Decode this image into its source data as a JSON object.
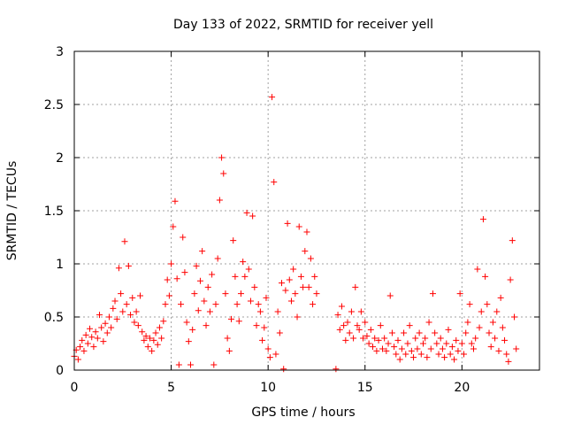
{
  "chart_data": {
    "type": "scatter",
    "title": "Day 133 of 2022, SRMTID for receiver yell",
    "xlabel": "GPS time / hours",
    "ylabel": "SRMTID / TECUs",
    "xlim": [
      0,
      24
    ],
    "ylim": [
      0,
      3
    ],
    "x_ticks": [
      0,
      5,
      10,
      15,
      20
    ],
    "x_tick_labels": [
      "0",
      "5",
      "10",
      "15",
      "20"
    ],
    "y_ticks": [
      0,
      0.5,
      1,
      1.5,
      2,
      2.5,
      3
    ],
    "y_tick_labels": [
      "0",
      "0.5",
      "1",
      "1.5",
      "2",
      "2.5",
      "3"
    ],
    "grid": true,
    "marker": "plus",
    "series": [
      {
        "name": "SRMTID",
        "color": "#ff0000",
        "points": [
          [
            0.0,
            0.13
          ],
          [
            0.1,
            0.19
          ],
          [
            0.2,
            0.1
          ],
          [
            0.3,
            0.22
          ],
          [
            0.4,
            0.28
          ],
          [
            0.5,
            0.18
          ],
          [
            0.6,
            0.33
          ],
          [
            0.7,
            0.25
          ],
          [
            0.8,
            0.39
          ],
          [
            0.9,
            0.31
          ],
          [
            1.0,
            0.22
          ],
          [
            1.1,
            0.36
          ],
          [
            1.2,
            0.3
          ],
          [
            1.3,
            0.52
          ],
          [
            1.4,
            0.4
          ],
          [
            1.5,
            0.27
          ],
          [
            1.6,
            0.44
          ],
          [
            1.7,
            0.35
          ],
          [
            1.8,
            0.5
          ],
          [
            1.9,
            0.4
          ],
          [
            2.0,
            0.58
          ],
          [
            2.1,
            0.65
          ],
          [
            2.2,
            0.48
          ],
          [
            2.3,
            0.96
          ],
          [
            2.4,
            0.72
          ],
          [
            2.5,
            0.55
          ],
          [
            2.6,
            1.21
          ],
          [
            2.7,
            0.62
          ],
          [
            2.8,
            0.98
          ],
          [
            2.9,
            0.52
          ],
          [
            3.0,
            0.68
          ],
          [
            3.1,
            0.45
          ],
          [
            3.2,
            0.55
          ],
          [
            3.3,
            0.42
          ],
          [
            3.4,
            0.7
          ],
          [
            3.5,
            0.36
          ],
          [
            3.6,
            0.28
          ],
          [
            3.7,
            0.32
          ],
          [
            3.8,
            0.22
          ],
          [
            3.9,
            0.3
          ],
          [
            4.0,
            0.18
          ],
          [
            4.1,
            0.28
          ],
          [
            4.2,
            0.35
          ],
          [
            4.3,
            0.24
          ],
          [
            4.4,
            0.4
          ],
          [
            4.5,
            0.3
          ],
          [
            4.6,
            0.46
          ],
          [
            4.7,
            0.62
          ],
          [
            4.8,
            0.85
          ],
          [
            4.9,
            0.7
          ],
          [
            5.0,
            1.0
          ],
          [
            5.1,
            1.35
          ],
          [
            5.2,
            1.59
          ],
          [
            5.3,
            0.86
          ],
          [
            5.4,
            0.05
          ],
          [
            5.5,
            0.62
          ],
          [
            5.6,
            1.25
          ],
          [
            5.7,
            0.92
          ],
          [
            5.8,
            0.45
          ],
          [
            5.9,
            0.27
          ],
          [
            6.0,
            0.05
          ],
          [
            6.1,
            0.38
          ],
          [
            6.2,
            0.72
          ],
          [
            6.3,
            0.98
          ],
          [
            6.4,
            0.56
          ],
          [
            6.5,
            0.84
          ],
          [
            6.6,
            1.12
          ],
          [
            6.7,
            0.65
          ],
          [
            6.8,
            0.42
          ],
          [
            6.9,
            0.78
          ],
          [
            7.0,
            0.55
          ],
          [
            7.1,
            0.9
          ],
          [
            7.2,
            0.05
          ],
          [
            7.3,
            0.62
          ],
          [
            7.4,
            1.05
          ],
          [
            7.5,
            1.6
          ],
          [
            7.6,
            2.0
          ],
          [
            7.7,
            1.85
          ],
          [
            7.8,
            0.72
          ],
          [
            7.9,
            0.3
          ],
          [
            8.0,
            0.18
          ],
          [
            8.1,
            0.48
          ],
          [
            8.2,
            1.22
          ],
          [
            8.3,
            0.88
          ],
          [
            8.4,
            0.62
          ],
          [
            8.5,
            0.46
          ],
          [
            8.6,
            0.72
          ],
          [
            8.7,
            1.02
          ],
          [
            8.8,
            0.88
          ],
          [
            8.9,
            1.48
          ],
          [
            9.0,
            0.95
          ],
          [
            9.1,
            0.65
          ],
          [
            9.2,
            1.45
          ],
          [
            9.3,
            0.78
          ],
          [
            9.4,
            0.42
          ],
          [
            9.5,
            0.62
          ],
          [
            9.6,
            0.55
          ],
          [
            9.7,
            0.28
          ],
          [
            9.8,
            0.4
          ],
          [
            9.9,
            0.68
          ],
          [
            10.0,
            0.2
          ],
          [
            10.1,
            0.12
          ],
          [
            10.2,
            2.57
          ],
          [
            10.3,
            1.77
          ],
          [
            10.4,
            0.15
          ],
          [
            10.5,
            0.55
          ],
          [
            10.6,
            0.35
          ],
          [
            10.7,
            0.82
          ],
          [
            10.8,
            0.01
          ],
          [
            10.9,
            0.75
          ],
          [
            11.0,
            1.38
          ],
          [
            11.1,
            0.85
          ],
          [
            11.2,
            0.65
          ],
          [
            11.3,
            0.95
          ],
          [
            11.4,
            0.72
          ],
          [
            11.5,
            0.5
          ],
          [
            11.6,
            1.35
          ],
          [
            11.7,
            0.88
          ],
          [
            11.8,
            0.78
          ],
          [
            11.9,
            1.12
          ],
          [
            12.0,
            1.3
          ],
          [
            12.1,
            0.78
          ],
          [
            12.2,
            1.05
          ],
          [
            12.3,
            0.62
          ],
          [
            12.4,
            0.88
          ],
          [
            12.5,
            0.72
          ],
          [
            13.5,
            0.01
          ],
          [
            13.6,
            0.52
          ],
          [
            13.7,
            0.38
          ],
          [
            13.8,
            0.6
          ],
          [
            13.9,
            0.42
          ],
          [
            14.0,
            0.28
          ],
          [
            14.1,
            0.45
          ],
          [
            14.2,
            0.35
          ],
          [
            14.3,
            0.55
          ],
          [
            14.4,
            0.3
          ],
          [
            14.5,
            0.78
          ],
          [
            14.6,
            0.42
          ],
          [
            14.7,
            0.38
          ],
          [
            14.8,
            0.55
          ],
          [
            14.9,
            0.3
          ],
          [
            15.0,
            0.45
          ],
          [
            15.1,
            0.32
          ],
          [
            15.2,
            0.25
          ],
          [
            15.3,
            0.38
          ],
          [
            15.4,
            0.22
          ],
          [
            15.5,
            0.3
          ],
          [
            15.6,
            0.18
          ],
          [
            15.7,
            0.28
          ],
          [
            15.8,
            0.42
          ],
          [
            15.9,
            0.2
          ],
          [
            16.0,
            0.3
          ],
          [
            16.1,
            0.18
          ],
          [
            16.2,
            0.25
          ],
          [
            16.3,
            0.7
          ],
          [
            16.4,
            0.35
          ],
          [
            16.5,
            0.22
          ],
          [
            16.6,
            0.15
          ],
          [
            16.7,
            0.28
          ],
          [
            16.8,
            0.1
          ],
          [
            16.9,
            0.2
          ],
          [
            17.0,
            0.35
          ],
          [
            17.1,
            0.15
          ],
          [
            17.2,
            0.25
          ],
          [
            17.3,
            0.42
          ],
          [
            17.4,
            0.18
          ],
          [
            17.5,
            0.12
          ],
          [
            17.6,
            0.3
          ],
          [
            17.7,
            0.2
          ],
          [
            17.8,
            0.35
          ],
          [
            17.9,
            0.15
          ],
          [
            18.0,
            0.25
          ],
          [
            18.1,
            0.3
          ],
          [
            18.2,
            0.12
          ],
          [
            18.3,
            0.45
          ],
          [
            18.4,
            0.2
          ],
          [
            18.5,
            0.72
          ],
          [
            18.6,
            0.35
          ],
          [
            18.7,
            0.25
          ],
          [
            18.8,
            0.15
          ],
          [
            18.9,
            0.3
          ],
          [
            19.0,
            0.2
          ],
          [
            19.1,
            0.12
          ],
          [
            19.2,
            0.25
          ],
          [
            19.3,
            0.38
          ],
          [
            19.4,
            0.15
          ],
          [
            19.5,
            0.22
          ],
          [
            19.6,
            0.1
          ],
          [
            19.7,
            0.28
          ],
          [
            19.8,
            0.18
          ],
          [
            19.9,
            0.72
          ],
          [
            20.0,
            0.25
          ],
          [
            20.1,
            0.15
          ],
          [
            20.2,
            0.35
          ],
          [
            20.3,
            0.45
          ],
          [
            20.4,
            0.62
          ],
          [
            20.5,
            0.25
          ],
          [
            20.6,
            0.2
          ],
          [
            20.7,
            0.3
          ],
          [
            20.8,
            0.95
          ],
          [
            20.9,
            0.4
          ],
          [
            21.0,
            0.55
          ],
          [
            21.1,
            1.42
          ],
          [
            21.2,
            0.88
          ],
          [
            21.3,
            0.62
          ],
          [
            21.4,
            0.35
          ],
          [
            21.5,
            0.22
          ],
          [
            21.6,
            0.45
          ],
          [
            21.7,
            0.3
          ],
          [
            21.8,
            0.55
          ],
          [
            21.9,
            0.18
          ],
          [
            22.0,
            0.68
          ],
          [
            22.1,
            0.4
          ],
          [
            22.2,
            0.28
          ],
          [
            22.3,
            0.15
          ],
          [
            22.4,
            0.08
          ],
          [
            22.5,
            0.85
          ],
          [
            22.6,
            1.22
          ],
          [
            22.7,
            0.5
          ],
          [
            22.8,
            0.2
          ]
        ]
      }
    ]
  }
}
